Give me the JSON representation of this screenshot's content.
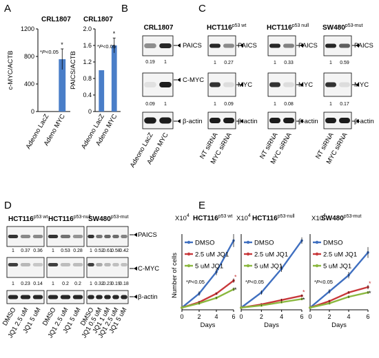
{
  "panels": {
    "A": "A",
    "B": "B",
    "C": "C",
    "D": "D",
    "E": "E"
  },
  "A": {
    "charts": [
      {
        "title": "CRL1807",
        "ylabel": "c-MYC/ACTB",
        "categories": [
          "Adeono LacZ",
          "Adeno MYC"
        ],
        "values": [
          0,
          760
        ],
        "err": [
          0,
          150
        ],
        "ylim": [
          0,
          1200
        ],
        "ticks": [
          "0",
          "400",
          "800",
          "1200"
        ],
        "tickvals": [
          0,
          400,
          800,
          1200
        ],
        "sig": "*P<0.05",
        "star": "*"
      },
      {
        "title": "CRL1807",
        "ylabel": "PAICS/ACTB",
        "categories": [
          "Adeono LacZ",
          "Adeno MYC"
        ],
        "values": [
          1.0,
          1.6
        ],
        "err": [
          0,
          0.18
        ],
        "ylim": [
          0,
          2.0
        ],
        "ticks": [
          "0",
          "0.4",
          "0.8",
          "1.2",
          "1.6",
          "2.0"
        ],
        "tickvals": [
          0,
          0.4,
          0.8,
          1.2,
          1.6,
          2.0
        ],
        "sig": "*P<0.05",
        "star": "*"
      }
    ]
  },
  "B": {
    "title": "CRL1807",
    "paics": "PAICS",
    "paics_q": [
      "0.19",
      "1"
    ],
    "myc": "C-MYC",
    "myc_q": [
      "0.09",
      "1"
    ],
    "actin": "β-actin",
    "lanes": [
      "Adeono LacZ",
      "Adeno MYC"
    ]
  },
  "C": {
    "groups": [
      {
        "name": "HCT116",
        "sup": "p53 wt",
        "paics_q": [
          "1",
          "0.27"
        ],
        "myc_q": [
          "1",
          "0.09"
        ]
      },
      {
        "name": "HCT116",
        "sup": "p53 null",
        "paics_q": [
          "1",
          "0.33"
        ],
        "myc_q": [
          "1",
          "0.08"
        ]
      },
      {
        "name": "SW480",
        "sup": "p53-mut",
        "paics_q": [
          "1",
          "0.59"
        ],
        "myc_q": [
          "1",
          "0.17"
        ]
      }
    ],
    "paics": "PAICS",
    "myc": "MYC",
    "actin": "β-actin",
    "lanes": [
      "NT siRNA",
      "MYC siRNA"
    ]
  },
  "D": {
    "groups": [
      {
        "name": "HCT116",
        "sup": "p53 wt",
        "paics_q": [
          "1",
          "0.37",
          "0.36"
        ],
        "myc_q": [
          "1",
          "0.23",
          "0.14"
        ],
        "lanes": [
          "DMSO",
          "JQ1 2.5 uM",
          "JQ1 5 uM"
        ]
      },
      {
        "name": "HCT116",
        "sup": "p53-null",
        "paics_q": [
          "1",
          "0.53",
          "0.28"
        ],
        "myc_q": [
          "1",
          "0.2",
          "0.2"
        ],
        "lanes": [
          "DMSO",
          "JQ1 2.5 uM",
          "JQ1 5 uM"
        ]
      },
      {
        "name": "SW480",
        "sup": "p53-mut",
        "paics_q": [
          "1",
          "0.52",
          "0.61",
          "0.58",
          "0.42"
        ],
        "myc_q": [
          "1",
          "0.32",
          "0.23",
          "0.19",
          "0.18"
        ],
        "lanes": [
          "DMSO",
          "JQ1 0.5 uM",
          "JQ1 1 uM",
          "JQ1 2.5 uM",
          "JQ1 5 uM"
        ]
      }
    ],
    "paics": "PAICS",
    "myc": "C-MYC",
    "actin": "β-actin"
  },
  "E": {
    "chart_data": [
      {
        "type": "line",
        "title": "HCT116",
        "sup": "p53 wt",
        "x": [
          0,
          2,
          4,
          6
        ],
        "xlim": [
          0,
          6
        ],
        "ylim": [
          0,
          7
        ],
        "xlabel": "Days",
        "ylabel": "Number of cells",
        "mult": "X10",
        "mult_exp": "4",
        "sig": "*P<0.05",
        "series": [
          {
            "name": "DMSO",
            "color": "#3f6fc0",
            "values": [
              0.2,
              1.5,
              3.5,
              6.4
            ],
            "err": [
              0,
              0.2,
              0.3,
              0.6
            ]
          },
          {
            "name": "2.5 uM JQ1",
            "color": "#c8383a",
            "values": [
              0.2,
              0.7,
              1.5,
              2.7
            ],
            "err": [
              0,
              0.1,
              0.1,
              0.2
            ]
          },
          {
            "name": "5 uM JQ1",
            "color": "#8ab83e",
            "values": [
              0.2,
              0.6,
              1.1,
              1.9
            ],
            "err": [
              0,
              0.1,
              0.1,
              0.15
            ]
          }
        ]
      },
      {
        "type": "line",
        "title": "HCT116",
        "sup": "p53-null",
        "x": [
          0,
          2,
          4,
          6
        ],
        "xlim": [
          0,
          6
        ],
        "ylim": [
          0,
          7
        ],
        "xlabel": "Days",
        "ylabel": "",
        "mult": "X10",
        "mult_exp": "4",
        "sig": "*P<0.05",
        "series": [
          {
            "name": "DMSO",
            "color": "#3f6fc0",
            "values": [
              0.2,
              1.6,
              3.8,
              6.4
            ],
            "err": [
              0,
              0.2,
              0.3,
              0.3
            ]
          },
          {
            "name": "2.5 uM JQ1",
            "color": "#c8383a",
            "values": [
              0.2,
              0.5,
              0.9,
              1.3
            ],
            "err": [
              0,
              0.05,
              0.1,
              0.1
            ]
          },
          {
            "name": "5 uM JQ1",
            "color": "#8ab83e",
            "values": [
              0.2,
              0.4,
              0.7,
              1.0
            ],
            "err": [
              0,
              0.05,
              0.05,
              0.1
            ]
          }
        ]
      },
      {
        "type": "line",
        "title": "SW480",
        "sup": "p53-mut",
        "x": [
          0,
          2,
          4,
          6
        ],
        "xlim": [
          0,
          6
        ],
        "ylim": [
          0,
          7
        ],
        "xlabel": "Days",
        "ylabel": "",
        "mult": "X10",
        "mult_exp": "4",
        "sig": "*P<0.05",
        "series": [
          {
            "name": "DMSO",
            "color": "#3f6fc0",
            "values": [
              0.2,
              1.7,
              3.2,
              5.3
            ],
            "err": [
              0,
              0.2,
              0.3,
              0.5
            ]
          },
          {
            "name": "2.5 uM JQ1",
            "color": "#c8383a",
            "values": [
              0.2,
              0.8,
              1.6,
              2.1
            ],
            "err": [
              0,
              0.1,
              0.1,
              0.2
            ]
          },
          {
            "name": "5 uM JQ1",
            "color": "#8ab83e",
            "values": [
              0.2,
              0.6,
              1.2,
              1.6
            ],
            "err": [
              0,
              0.05,
              0.1,
              0.1
            ]
          }
        ]
      }
    ]
  }
}
